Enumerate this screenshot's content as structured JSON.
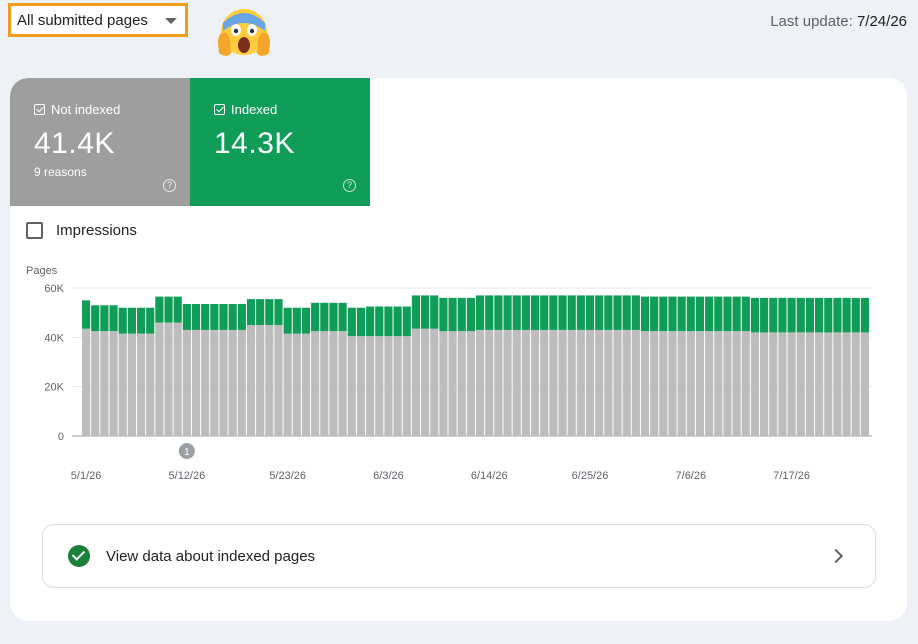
{
  "filter": {
    "selected": "All submitted pages"
  },
  "emoji": {
    "icon": "screaming-face-emoji"
  },
  "last_update": {
    "label": "Last update:",
    "date": "7/24/26"
  },
  "tiles": [
    {
      "label": "Not indexed",
      "value": "41.4K",
      "sub": "9 reasons",
      "color": "#9e9e9e",
      "checked": true
    },
    {
      "label": "Indexed",
      "value": "14.3K",
      "sub": "",
      "color": "#0f9d58",
      "checked": true
    }
  ],
  "impressions": {
    "label": "Impressions",
    "checked": false
  },
  "chart_data": {
    "type": "bar",
    "stacked": true,
    "ylabel": "Pages",
    "ylim": [
      0,
      60000
    ],
    "yticks": [
      "0",
      "20K",
      "40K",
      "60K"
    ],
    "xticks": [
      "5/1/26",
      "5/12/26",
      "5/23/26",
      "6/3/26",
      "6/14/26",
      "6/25/26",
      "7/6/26",
      "7/17/26"
    ],
    "annotation": {
      "label": "1",
      "x": "5/12/26"
    },
    "grid": true,
    "series": [
      {
        "name": "Not indexed",
        "color": "#bdbdbd",
        "values": [
          43500,
          42500,
          42500,
          42500,
          41500,
          41500,
          41500,
          41500,
          46000,
          46000,
          46000,
          43000,
          43000,
          43000,
          43000,
          43000,
          43000,
          43000,
          45000,
          45000,
          45000,
          45000,
          41500,
          41500,
          41500,
          42500,
          42500,
          42500,
          42500,
          40500,
          40500,
          40500,
          40500,
          40500,
          40500,
          40500,
          43500,
          43500,
          43500,
          42500,
          42500,
          42500,
          42500,
          43000,
          43000,
          43000,
          43000,
          43000,
          43000,
          43000,
          43000,
          43000,
          43000,
          43000,
          43000,
          43000,
          43000,
          43000,
          43000,
          43000,
          43000,
          42500,
          42500,
          42500,
          42500,
          42500,
          42500,
          42500,
          42500,
          42500,
          42500,
          42500,
          42500,
          42000,
          42000,
          42000,
          42000,
          42000,
          42000,
          42000,
          42000,
          42000,
          42000,
          42000,
          42000,
          42000
        ]
      },
      {
        "name": "Indexed",
        "color": "#0f9d58",
        "values": [
          11500,
          10500,
          10500,
          10500,
          10500,
          10500,
          10500,
          10500,
          10500,
          10500,
          10500,
          10500,
          10500,
          10500,
          10500,
          10500,
          10500,
          10500,
          10500,
          10500,
          10500,
          10500,
          10500,
          10500,
          10500,
          11500,
          11500,
          11500,
          11500,
          11500,
          11500,
          12000,
          12000,
          12000,
          12000,
          12000,
          13500,
          13500,
          13500,
          13500,
          13500,
          13500,
          13500,
          14000,
          14000,
          14000,
          14000,
          14000,
          14000,
          14000,
          14000,
          14000,
          14000,
          14000,
          14000,
          14000,
          14000,
          14000,
          14000,
          14000,
          14000,
          14000,
          14000,
          14000,
          14000,
          14000,
          14000,
          14000,
          14000,
          14000,
          14000,
          14000,
          14000,
          14000,
          14000,
          14000,
          14000,
          14000,
          14000,
          14000,
          14000,
          14000,
          14000,
          14000,
          14000,
          14000
        ]
      }
    ]
  },
  "view_link": {
    "label": "View data about indexed pages"
  }
}
